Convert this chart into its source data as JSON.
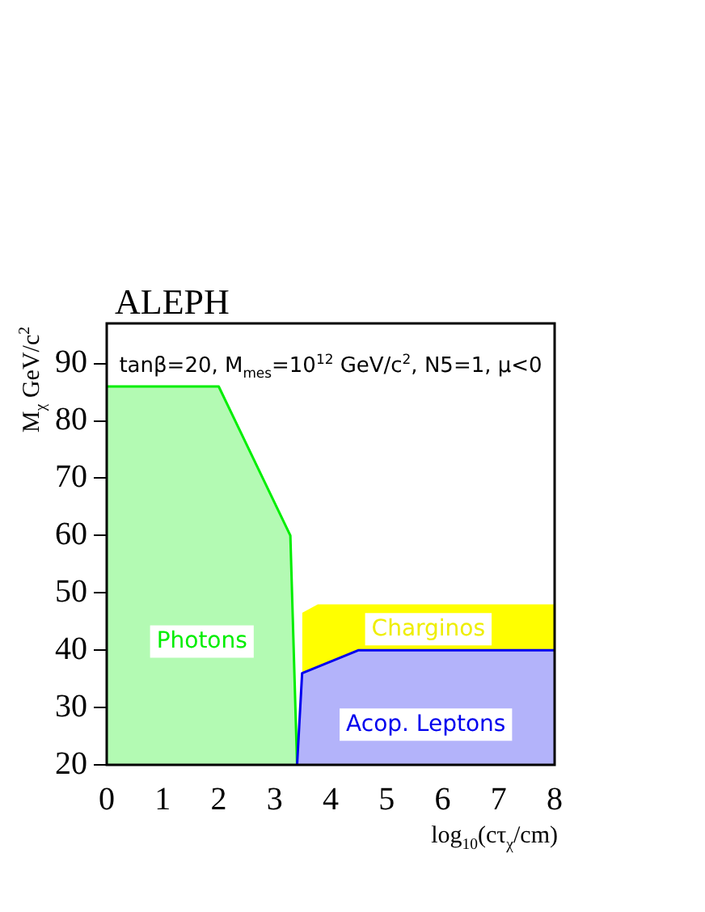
{
  "chart_data": {
    "type": "area",
    "title": "ALEPH",
    "xlabel": "log$_{10}$(cτ$_{χ}$/cm)",
    "ylabel": "M$_{χ}$ GeV/c$^{2}$",
    "annotations": [
      "tanβ=20, M$_{mes}$=10$^{12}$ GeV/c$^{2}$, N5=1, μ<0"
    ],
    "xlim": [
      0,
      8
    ],
    "xticks": [
      0,
      1,
      2,
      3,
      4,
      5,
      6,
      7,
      8
    ],
    "ylim": [
      20,
      97
    ],
    "yticks": [
      20,
      30,
      40,
      50,
      60,
      70,
      80,
      90
    ],
    "grid": false,
    "legend": false,
    "series": [
      {
        "name": "Photons",
        "color": "#00ee00",
        "x": [
          0,
          2,
          3.28,
          3.4
        ],
        "values": [
          86,
          86,
          60,
          20
        ]
      },
      {
        "name": "Charginos",
        "color": "#ffff00",
        "x": [
          3.49,
          3.77,
          8
        ],
        "values": [
          46.5,
          48,
          48
        ]
      },
      {
        "name": "Acop. Leptons",
        "color": "#0000ee",
        "x": [
          3.4,
          3.49,
          4.5,
          8
        ],
        "values": [
          20,
          36,
          40,
          40
        ]
      }
    ]
  }
}
